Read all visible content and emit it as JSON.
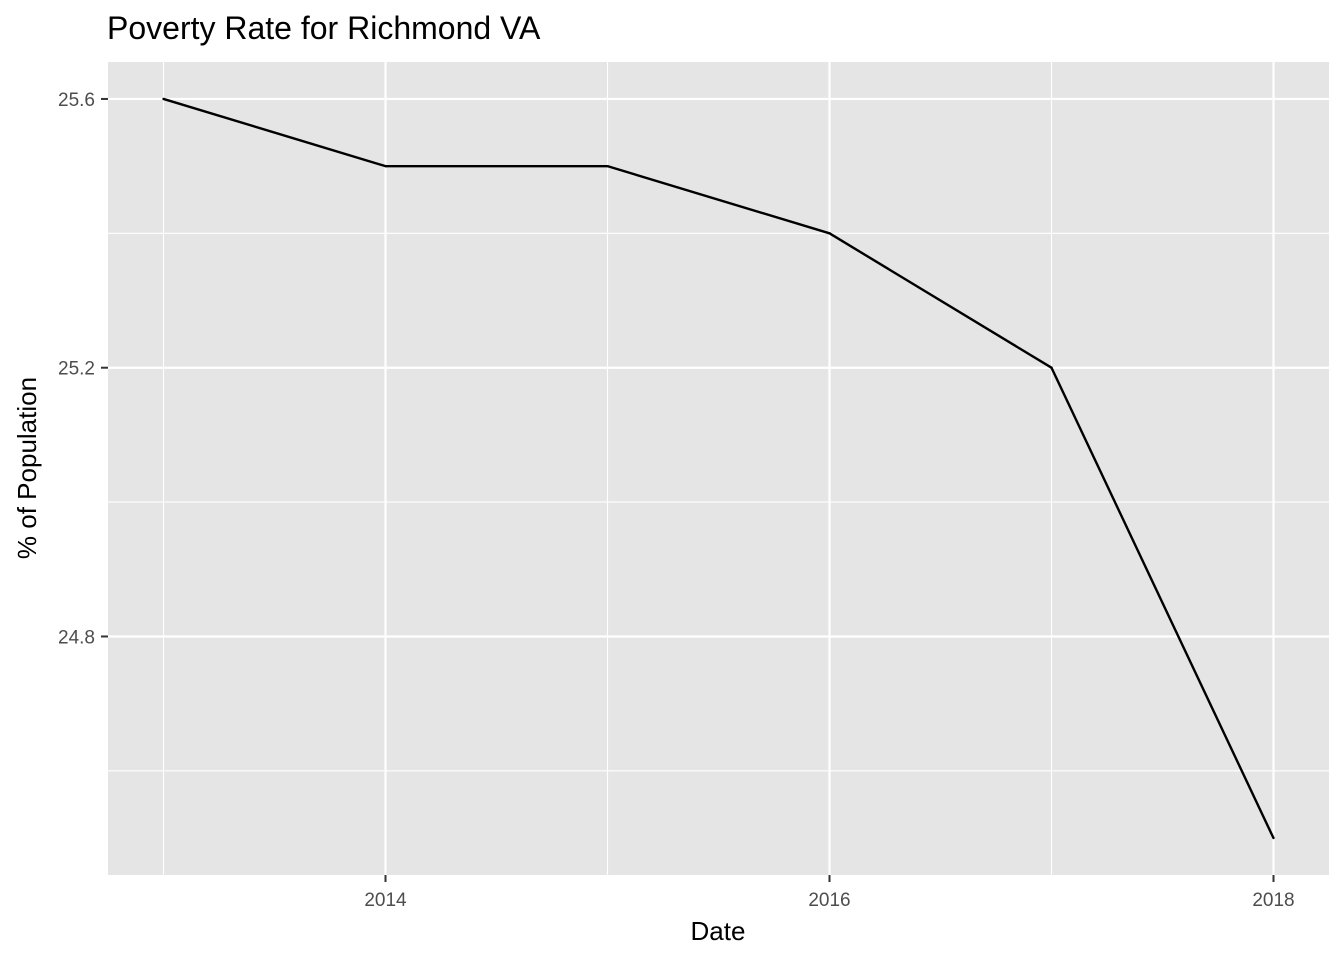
{
  "chart_data": {
    "type": "line",
    "title": "Poverty Rate for Richmond VA",
    "xlabel": "Date",
    "ylabel": "% of Population",
    "x": [
      2013,
      2014,
      2015,
      2016,
      2017,
      2018
    ],
    "series": [
      {
        "values": [
          25.6,
          25.5,
          25.5,
          25.4,
          25.2,
          24.5
        ]
      }
    ],
    "xlim": [
      2012.75,
      2018.25
    ],
    "ylim": [
      24.445,
      25.655
    ],
    "x_major_ticks": [
      2014,
      2016,
      2018
    ],
    "x_tick_labels": [
      "2014",
      "2016",
      "2018"
    ],
    "x_minor_ticks": [
      2013,
      2015,
      2017
    ],
    "y_major_ticks": [
      24.8,
      25.2,
      25.6
    ],
    "y_tick_labels": [
      "24.8",
      "25.2",
      "25.6"
    ],
    "y_minor_ticks": [
      24.6,
      25.0,
      25.4
    ],
    "grid": true,
    "legend": "none",
    "colors": {
      "panel_background": "#e5e5e5",
      "grid_line": "#ffffff",
      "series_line": "#000000",
      "tick_mark": "#333333",
      "tick_text": "#4d4d4d"
    }
  }
}
